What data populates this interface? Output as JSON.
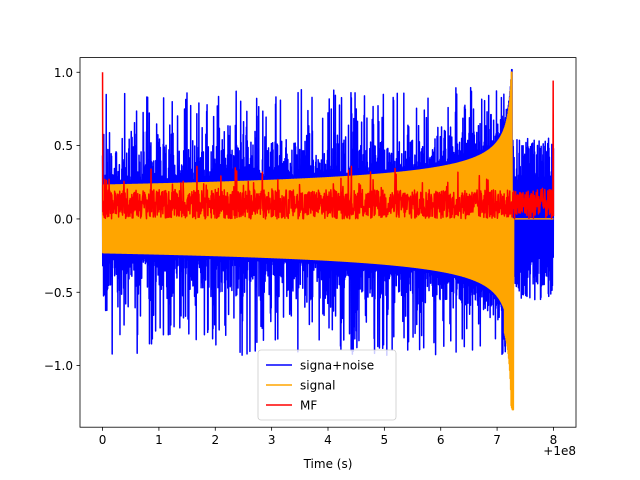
{
  "chart_data": {
    "type": "line",
    "title": "",
    "xlabel": "Time (s)",
    "ylabel": "",
    "x_offset_label": "+1e8",
    "xlim": [
      -0.4,
      8.4
    ],
    "ylim": [
      -1.42,
      1.1
    ],
    "x_ticks": [
      0,
      1,
      2,
      3,
      4,
      5,
      6,
      7,
      8
    ],
    "x_tick_labels": [
      "0",
      "1",
      "2",
      "3",
      "4",
      "5",
      "6",
      "7",
      "8"
    ],
    "y_ticks": [
      -1.0,
      -0.5,
      0.0,
      0.5,
      1.0
    ],
    "y_tick_labels": [
      "−1.0",
      "−0.5",
      "0.0",
      "0.5",
      "1.0"
    ],
    "grid": false,
    "legend_position": "lower-center",
    "series": [
      {
        "name": "signa+noise",
        "color": "#0000ff",
        "x_range": [
          0,
          8
        ],
        "envelope_min_abs": 0.22,
        "peak_max": 0.9,
        "peak_min": -0.93,
        "chirp_end": 7.27
      },
      {
        "name": "signal",
        "color": "#ffa500",
        "x_range": [
          0,
          8
        ],
        "start_amplitude": 0.23,
        "peak_max": 1.0,
        "peak_min": -1.3,
        "peak_time": 7.27,
        "tail_value": 0.0
      },
      {
        "name": "MF",
        "color": "#ff0000",
        "x_range": [
          0,
          8
        ],
        "baseline": 0.1,
        "noise_range": [
          -0.02,
          0.38
        ],
        "start_peak": 1.0,
        "end_peak": 0.94
      }
    ]
  }
}
